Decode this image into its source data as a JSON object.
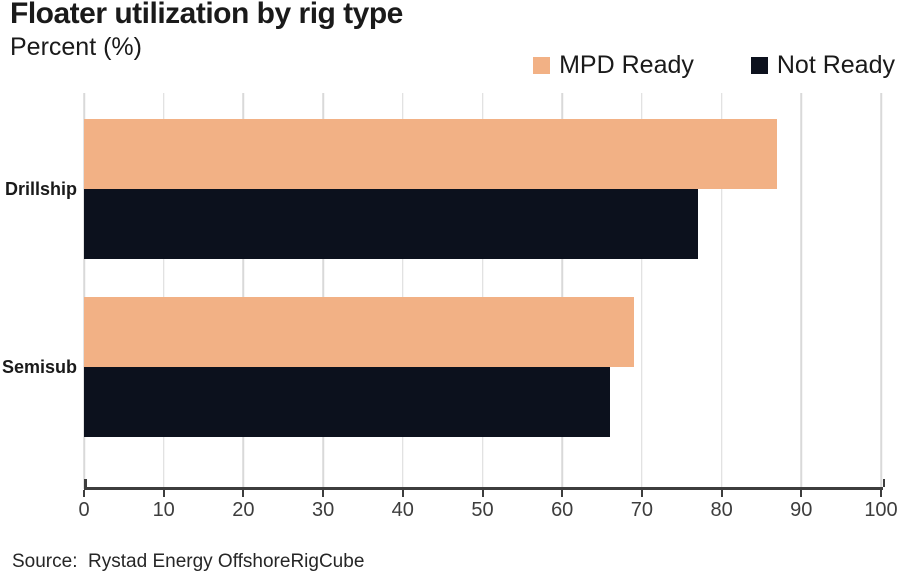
{
  "chart_data": {
    "type": "bar",
    "orientation": "horizontal",
    "title": "Floater utilization by rig type",
    "subtitle": "Percent (%)",
    "categories": [
      "Drillship",
      "Semisub"
    ],
    "series": [
      {
        "name": "MPD Ready",
        "color": "#F2B185",
        "values": [
          87,
          69
        ]
      },
      {
        "name": "Not Ready",
        "color": "#0C111D",
        "values": [
          77,
          66
        ]
      }
    ],
    "xlim": [
      0,
      100
    ],
    "xticks": [
      0,
      10,
      20,
      30,
      40,
      50,
      60,
      70,
      80,
      90,
      100
    ],
    "grid": "vertical",
    "legend_position": "top-right",
    "axis_color": "#3d3d3d",
    "gridline_color": "#d9d9d9",
    "source": "Source:  Rystad Energy OffshoreRigCube"
  }
}
